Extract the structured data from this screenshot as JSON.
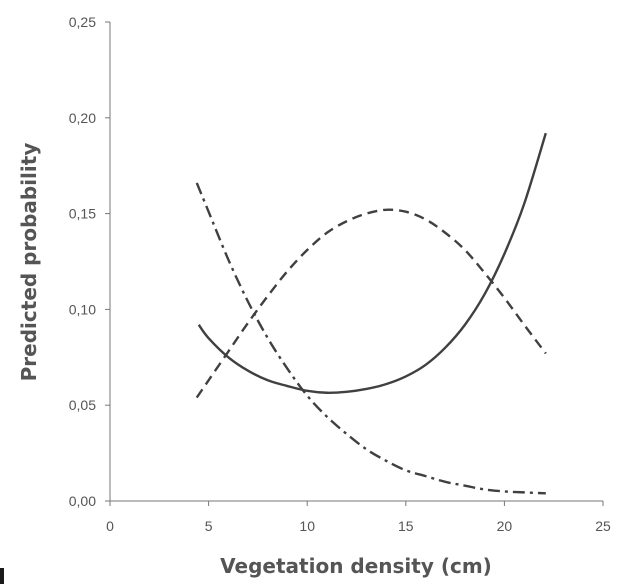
{
  "chart_data": {
    "type": "line",
    "title": "",
    "xlabel": "Vegetation density (cm)",
    "ylabel": "Predicted probability",
    "xlim": [
      0,
      25
    ],
    "ylim": [
      0,
      0.25
    ],
    "x_ticks": [
      0,
      5,
      10,
      15,
      20,
      25
    ],
    "x_tick_labels": [
      "0",
      "5",
      "10",
      "15",
      "20",
      "25"
    ],
    "y_ticks": [
      0,
      0.05,
      0.1,
      0.15,
      0.2,
      0.25
    ],
    "y_tick_labels": [
      "0,00",
      "0,05",
      "0,10",
      "0,15",
      "0,20",
      "0,25"
    ],
    "grid": false,
    "legend": "none",
    "series": [
      {
        "style": "solid",
        "x": [
          4.5,
          5,
          6,
          7,
          8,
          9,
          10,
          11,
          12,
          13,
          14,
          15,
          16,
          17,
          18,
          19,
          20,
          21,
          22.1
        ],
        "y": [
          0.092,
          0.085,
          0.075,
          0.068,
          0.063,
          0.06,
          0.0575,
          0.0565,
          0.057,
          0.0585,
          0.061,
          0.065,
          0.071,
          0.08,
          0.092,
          0.108,
          0.129,
          0.155,
          0.192
        ]
      },
      {
        "style": "dashed",
        "x": [
          4.4,
          5,
          6,
          7,
          8,
          9,
          10,
          11,
          12,
          13,
          14,
          15,
          16,
          17,
          18,
          19,
          20,
          21,
          22.1
        ],
        "y": [
          0.054,
          0.063,
          0.078,
          0.093,
          0.107,
          0.12,
          0.131,
          0.14,
          0.146,
          0.15,
          0.152,
          0.151,
          0.147,
          0.14,
          0.131,
          0.119,
          0.106,
          0.092,
          0.077
        ]
      },
      {
        "style": "dash-dot",
        "x": [
          4.4,
          5,
          6,
          7,
          8,
          9,
          10,
          11,
          12,
          13,
          14,
          15,
          16,
          17,
          18,
          19,
          20,
          21,
          22.1
        ],
        "y": [
          0.166,
          0.151,
          0.126,
          0.104,
          0.085,
          0.069,
          0.055,
          0.044,
          0.035,
          0.027,
          0.021,
          0.016,
          0.013,
          0.01,
          0.008,
          0.006,
          0.005,
          0.0045,
          0.004
        ]
      }
    ]
  }
}
